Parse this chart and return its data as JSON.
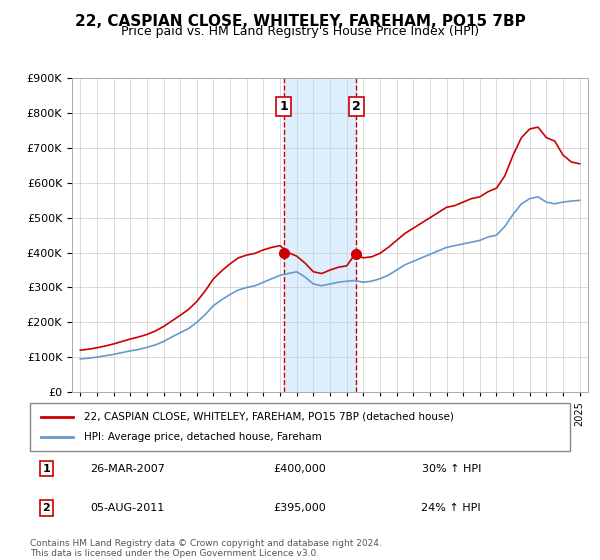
{
  "title": "22, CASPIAN CLOSE, WHITELEY, FAREHAM, PO15 7BP",
  "subtitle": "Price paid vs. HM Land Registry's House Price Index (HPI)",
  "legend_line1": "22, CASPIAN CLOSE, WHITELEY, FAREHAM, PO15 7BP (detached house)",
  "legend_line2": "HPI: Average price, detached house, Fareham",
  "footnote": "Contains HM Land Registry data © Crown copyright and database right 2024.\nThis data is licensed under the Open Government Licence v3.0.",
  "transaction1_label": "1",
  "transaction1_date": "26-MAR-2007",
  "transaction1_price": "£400,000",
  "transaction1_hpi": "30% ↑ HPI",
  "transaction2_label": "2",
  "transaction2_date": "05-AUG-2011",
  "transaction2_price": "£395,000",
  "transaction2_hpi": "24% ↑ HPI",
  "price_line_color": "#cc0000",
  "hpi_line_color": "#6699cc",
  "highlight_color": "#ddeeff",
  "marker_color": "#cc0000",
  "transaction1_x": 2007.23,
  "transaction2_x": 2011.59,
  "ylim_min": 0,
  "ylim_max": 900000
}
